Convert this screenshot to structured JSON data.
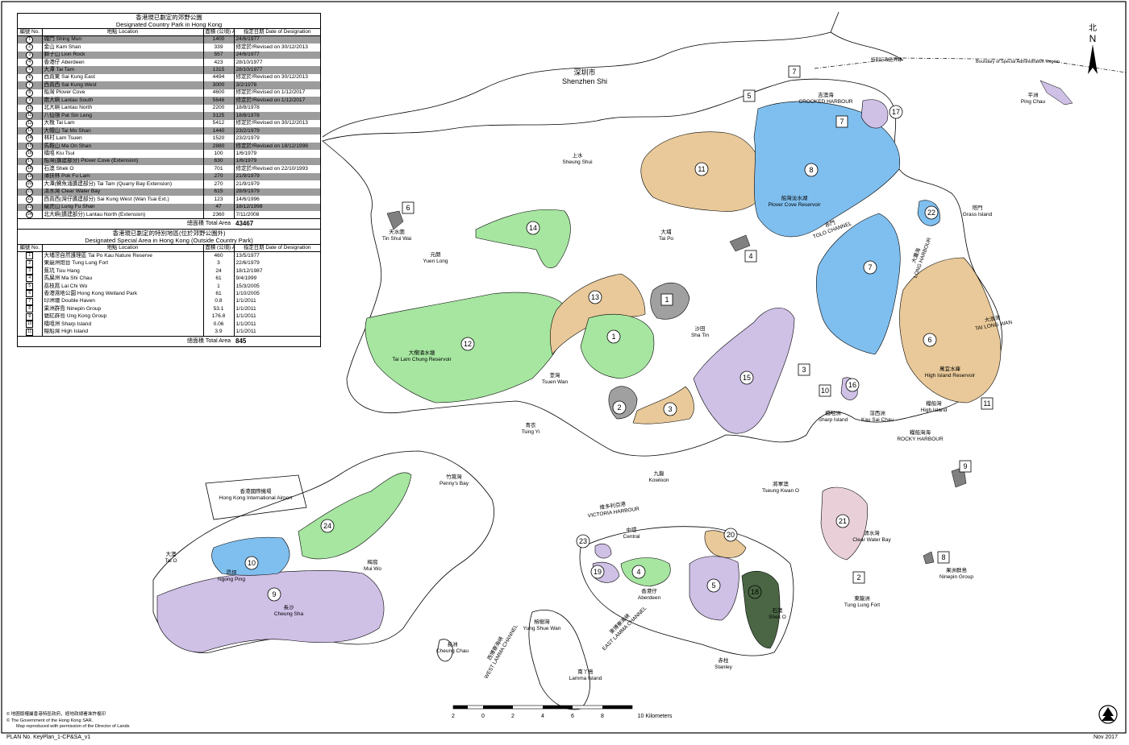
{
  "legend_country_parks": {
    "title_zh": "香港現已劃定的郊野公園",
    "title_en": "Designated Country Park in Hong Kong",
    "col_no": "編號 No.",
    "col_location": "地點 Location",
    "col_area": "面積 (公頃) Area (ha)",
    "col_date": "指定日期 Date of Designation",
    "rows": [
      {
        "no": "1",
        "name": "城門 Shing Mun",
        "area": "1400",
        "date": "24/6/1977"
      },
      {
        "no": "2",
        "name": "金山 Kam Shan",
        "area": "339",
        "date": "修定於/Revised on 30/12/2013"
      },
      {
        "no": "3",
        "name": "獅子山 Lion Rock",
        "area": "557",
        "date": "24/6/1977"
      },
      {
        "no": "4",
        "name": "香港仔 Aberdeen",
        "area": "423",
        "date": "28/10/1977"
      },
      {
        "no": "5",
        "name": "大潭 Tai Tam",
        "area": "1315",
        "date": "28/10/1977"
      },
      {
        "no": "6",
        "name": "西貢東 Sai Kung East",
        "area": "4494",
        "date": "修定於/Revised on 30/12/2013"
      },
      {
        "no": "7",
        "name": "西貢西 Sai Kung West",
        "area": "3000",
        "date": "3/2/1978"
      },
      {
        "no": "8",
        "name": "船灣 Plover Cove",
        "area": "4600",
        "date": "修定於/Revised on 1/12/2017"
      },
      {
        "no": "9",
        "name": "南大嶼 Lantau South",
        "area": "5646",
        "date": "修定於/Revised on 1/12/2017"
      },
      {
        "no": "10",
        "name": "北大嶼 Lantau North",
        "area": "2200",
        "date": "18/8/1978"
      },
      {
        "no": "11",
        "name": "八仙嶺 Pat Sin Leng",
        "area": "3125",
        "date": "18/8/1978"
      },
      {
        "no": "12",
        "name": "大欖 Tai Lam",
        "area": "5412",
        "date": "修定於/Revised on 30/12/2013"
      },
      {
        "no": "13",
        "name": "大帽山 Tai Mo Shan",
        "area": "1440",
        "date": "23/2/1979"
      },
      {
        "no": "14",
        "name": "林村 Lam Tsuen",
        "area": "1520",
        "date": "23/2/1979"
      },
      {
        "no": "15",
        "name": "馬鞍山 Ma On Shan",
        "area": "2880",
        "date": "修定於/Revised on 18/12/1998"
      },
      {
        "no": "16",
        "name": "橋咀 Kiu Tsui",
        "area": "100",
        "date": "1/6/1979"
      },
      {
        "no": "17",
        "name": "船灣(擴建部分) Plover Cove (Extension)",
        "area": "630",
        "date": "1/6/1979"
      },
      {
        "no": "18",
        "name": "石澳 Shek O",
        "area": "701",
        "date": "修定於/Revised on 22/10/1993"
      },
      {
        "no": "19",
        "name": "薄扶林 Pok Fu Lam",
        "area": "270",
        "date": "21/9/1979"
      },
      {
        "no": "20",
        "name": "大潭(鰂魚涌擴建部分) Tai Tam (Quarry Bay Extension)",
        "area": "270",
        "date": "21/9/1979"
      },
      {
        "no": "21",
        "name": "清水灣 Clear Water Bay",
        "area": "615",
        "date": "28/9/1979"
      },
      {
        "no": "22",
        "name": "西貢西(灣仔擴建部分) Sai Kung West (Wan Tsai Ext.)",
        "area": "123",
        "date": "14/6/1996"
      },
      {
        "no": "23",
        "name": "龍虎山 Lung Fu Shan",
        "area": "47",
        "date": "18/12/1998"
      },
      {
        "no": "24",
        "name": "北大嶼(擴建部分) Lantau North (Extension)",
        "area": "2360",
        "date": "7/11/2008"
      }
    ],
    "total_label": "總面積 Total Area",
    "total_value": "43467"
  },
  "legend_special_areas": {
    "title_zh": "香港現已劃定的特別地區(位於郊野公園外)",
    "title_en": "Designated Special Area in Hong Kong (Outside Country Park)",
    "col_no": "編號 No.",
    "col_location": "地點 Location",
    "col_area": "面積 (公頃) Area (ha)",
    "col_date": "指定日期 Date of Designation",
    "rows": [
      {
        "no": "1",
        "name": "大埔滘自然護理區 Tai Po Kau Nature Reserve",
        "area": "460",
        "date": "13/5/1977"
      },
      {
        "no": "2",
        "name": "東龍洲炮台 Tung Lung Fort",
        "area": "3",
        "date": "22/6/1979"
      },
      {
        "no": "3",
        "name": "蕉坑 Tsiu Hang",
        "area": "24",
        "date": "18/12/1987"
      },
      {
        "no": "4",
        "name": "馬屎洲 Ma Shi Chau",
        "area": "61",
        "date": "9/4/1999"
      },
      {
        "no": "5",
        "name": "荔枝窩 Lai Chi Wo",
        "area": "1",
        "date": "15/3/2005"
      },
      {
        "no": "6",
        "name": "香港濕地公園 Hong Kong Wetland Park",
        "area": "61",
        "date": "1/10/2005"
      },
      {
        "no": "7",
        "name": "印洲塘 Double Haven",
        "area": "0.8",
        "date": "1/1/2011"
      },
      {
        "no": "8",
        "name": "果洲群島 Ninepin Group",
        "area": "53.1",
        "date": "1/1/2011"
      },
      {
        "no": "9",
        "name": "甕缸群島 Ung Kong Group",
        "area": "176.8",
        "date": "1/1/2011"
      },
      {
        "no": "10",
        "name": "橋咀洲 Sharp Island",
        "area": "0.06",
        "date": "1/1/2011"
      },
      {
        "no": "11",
        "name": "糧船灣 High Island",
        "area": "3.9",
        "date": "1/1/2011"
      }
    ],
    "total_label": "總面積 Total Area",
    "total_value": "845"
  },
  "place_labels": [
    {
      "id": "shenzhen",
      "zh": "深圳市",
      "en": "Shenzhen Shi"
    },
    {
      "id": "sheung-shui",
      "zh": "上水",
      "en": "Sheung Shui"
    },
    {
      "id": "tin-shui-wai",
      "zh": "天水圍",
      "en": "Tin Shui Wai"
    },
    {
      "id": "yuen-long",
      "zh": "元朗",
      "en": "Yuen Long"
    },
    {
      "id": "tai-po",
      "zh": "大埔",
      "en": "Tai Po"
    },
    {
      "id": "sha-tin",
      "zh": "沙田",
      "en": "Sha Tin"
    },
    {
      "id": "tsuen-wan",
      "zh": "荃灣",
      "en": "Tsuen Wan"
    },
    {
      "id": "tsing-yi",
      "zh": "青衣",
      "en": "Tsing Yi"
    },
    {
      "id": "kowloon",
      "zh": "九龍",
      "en": "Kowloon"
    },
    {
      "id": "tseung-kwan-o",
      "zh": "將軍澳",
      "en": "Tseung Kwan O"
    },
    {
      "id": "pennys-bay",
      "zh": "竹篙灣",
      "en": "Penny's Bay"
    },
    {
      "id": "airport",
      "zh": "香港國際機場",
      "en": "Hong Kong International Airport"
    },
    {
      "id": "tai-o",
      "zh": "大澳",
      "en": "Tai O"
    },
    {
      "id": "ngong-ping",
      "zh": "昂坪",
      "en": "Ngong Ping"
    },
    {
      "id": "mui-wo",
      "zh": "梅窩",
      "en": "Mui Wo"
    },
    {
      "id": "cheung-sha",
      "zh": "長沙",
      "en": "Cheung Sha"
    },
    {
      "id": "central",
      "zh": "中環",
      "en": "Central"
    },
    {
      "id": "aberdeen",
      "zh": "香港仔",
      "en": "Aberdeen"
    },
    {
      "id": "yung-shue-wan",
      "zh": "榕樹灣",
      "en": "Yung Shue Wan"
    },
    {
      "id": "cheung-chau",
      "zh": "長洲",
      "en": "Cheung Chau"
    },
    {
      "id": "lamma",
      "zh": "南丫島",
      "en": "Lamma Island"
    },
    {
      "id": "stanley",
      "zh": "赤柱",
      "en": "Stanley"
    },
    {
      "id": "shek-o",
      "zh": "石澳",
      "en": "Shek O"
    },
    {
      "id": "clear-water-bay",
      "zh": "清水灣",
      "en": "Clear Water Bay"
    },
    {
      "id": "tung-lung",
      "zh": "東龍洲",
      "en": "Tung Lung Fort"
    },
    {
      "id": "ninepin",
      "zh": "果洲群島",
      "en": "Ninepin Group"
    },
    {
      "id": "sharp-island",
      "zh": "橋咀洲",
      "en": "Sharp Island"
    },
    {
      "id": "kau-sai-chau",
      "zh": "滘西洲",
      "en": "Kau Sai Chau"
    },
    {
      "id": "high-island",
      "zh": "糧船灣",
      "en": "High Island"
    },
    {
      "id": "rocky-harbour",
      "zh": "糧船灣海",
      "en": "ROCKY HARBOUR"
    },
    {
      "id": "grass-island",
      "zh": "塔門",
      "en": "Grass Island"
    },
    {
      "id": "ping-chau",
      "zh": "平洲",
      "en": "Ping Chau"
    },
    {
      "id": "crooked-harbour",
      "zh": "吉澳海",
      "en": "CROOKED HARBOUR"
    },
    {
      "id": "tai-long-wan",
      "zh": "大浪灣",
      "en": "TAI LONG WAN"
    },
    {
      "id": "long-harbour",
      "zh": "大灘海",
      "en": "LONG HARBOUR"
    },
    {
      "id": "tolo-channel",
      "zh": "赤門",
      "en": "TOLO CHANNEL"
    },
    {
      "id": "victoria-harbour",
      "zh": "維多利亞港",
      "en": "VICTORIA HARBOUR"
    },
    {
      "id": "west-lamma",
      "zh": "西博寮海峽",
      "en": "WEST LAMMA CHANNEL"
    },
    {
      "id": "east-lamma",
      "zh": "東博寮海峽",
      "en": "EAST LAMMA CHANNEL"
    },
    {
      "id": "plover-cove-reservoir",
      "zh": "船灣淡水湖",
      "en": "Plover Cove Reservoir"
    },
    {
      "id": "tai-lam-chung",
      "zh": "大欖涌水塘",
      "en": "Tai Lam Chung Reservoir"
    },
    {
      "id": "high-island-reservoir",
      "zh": "萬宜水庫",
      "en": "High Island Reservoir"
    }
  ],
  "boundary_label_zh": "特別行政區界線",
  "boundary_label_en": "Boundary of Special Administrative Region",
  "north_zh": "北",
  "north_en": "N",
  "scale": {
    "ticks": [
      "2",
      "0",
      "2",
      "4",
      "6",
      "8",
      "10 Kilometers"
    ]
  },
  "copyright_1": "© 地圖版權屬香港特區政府，經地政總署准許複印",
  "copyright_2": "© The Government of the Hong Kong SAR.",
  "copyright_3": "Map reproduced with permission of the Director of Lands",
  "plan_no": "PLAN No. KeyPlan_1-CP&SA_v1",
  "date": "Nov 2017",
  "colors": {
    "country_park_markers": [
      "#e9c999",
      "#7fbfef",
      "#a6e6a0",
      "#cfc0e6",
      "#a0a0a0",
      "#4a6644"
    ]
  }
}
